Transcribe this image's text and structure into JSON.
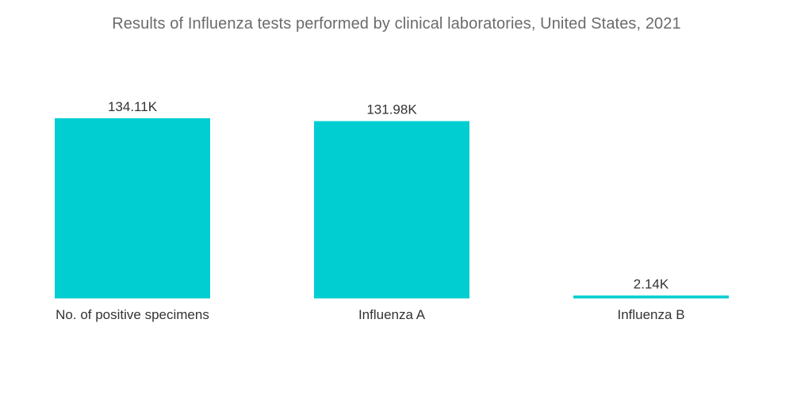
{
  "chart_data": {
    "type": "bar",
    "title": "Results of Influenza tests performed by clinical laboratories, United States, 2021",
    "categories": [
      "No. of positive specimens",
      "Influenza A",
      "Influenza B"
    ],
    "values": [
      134.11,
      131.98,
      2.14
    ],
    "value_labels": [
      "134.11K",
      "131.98K",
      "2.14K"
    ],
    "unit": "K",
    "xlabel": "",
    "ylabel": "",
    "ylim": [
      0,
      134.11
    ],
    "grid": false,
    "legend": "none",
    "bar_color": "#00ced1"
  }
}
